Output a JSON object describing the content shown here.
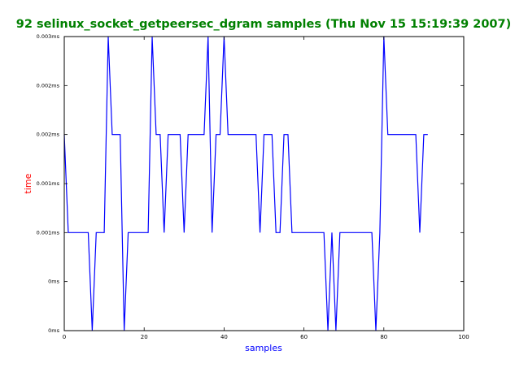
{
  "chart_data": {
    "type": "line",
    "title": "92 selinux_socket_getpeersec_dgram samples (Thu Nov 15 15:19:39 2007)",
    "xlabel": "samples",
    "ylabel": "time",
    "x": [
      0,
      1,
      2,
      3,
      4,
      5,
      6,
      7,
      8,
      9,
      10,
      11,
      12,
      13,
      14,
      15,
      16,
      17,
      18,
      19,
      20,
      21,
      22,
      23,
      24,
      25,
      26,
      27,
      28,
      29,
      30,
      31,
      32,
      33,
      34,
      35,
      36,
      37,
      38,
      39,
      40,
      41,
      42,
      43,
      44,
      45,
      46,
      47,
      48,
      49,
      50,
      51,
      52,
      53,
      54,
      55,
      56,
      57,
      58,
      59,
      60,
      61,
      62,
      63,
      64,
      65,
      66,
      67,
      68,
      69,
      70,
      71,
      72,
      73,
      74,
      75,
      76,
      77,
      78,
      79,
      80,
      81,
      82,
      83,
      84,
      85,
      86,
      87,
      88,
      89,
      90,
      91
    ],
    "series": [
      {
        "color": "#0000ff",
        "values": [
          0.002,
          0.001,
          0.001,
          0.001,
          0.001,
          0.001,
          0.001,
          0,
          0.001,
          0.001,
          0.001,
          0.003,
          0.002,
          0.002,
          0.002,
          0,
          0.001,
          0.001,
          0.001,
          0.001,
          0.001,
          0.001,
          0.003,
          0.002,
          0.002,
          0.001,
          0.002,
          0.002,
          0.002,
          0.002,
          0.001,
          0.002,
          0.002,
          0.002,
          0.002,
          0.002,
          0.003,
          0.001,
          0.002,
          0.002,
          0.003,
          0.002,
          0.002,
          0.002,
          0.002,
          0.002,
          0.002,
          0.002,
          0.002,
          0.001,
          0.002,
          0.002,
          0.002,
          0.001,
          0.001,
          0.002,
          0.002,
          0.001,
          0.001,
          0.001,
          0.001,
          0.001,
          0.001,
          0.001,
          0.001,
          0.001,
          0,
          0.001,
          0,
          0.001,
          0.001,
          0.001,
          0.001,
          0.001,
          0.001,
          0.001,
          0.001,
          0.001,
          0,
          0.001,
          0.003,
          0.002,
          0.002,
          0.002,
          0.002,
          0.002,
          0.002,
          0.002,
          0.002,
          0.001,
          0.002,
          0.002
        ]
      }
    ],
    "xlim": [
      0,
      100
    ],
    "xticks": [
      0,
      20,
      40,
      60,
      80,
      100
    ],
    "ylim": [
      0,
      0.003
    ],
    "yticks": [
      {
        "value": 0,
        "label": "0ms"
      },
      {
        "value": 0.0005,
        "label": "0ms"
      },
      {
        "value": 0.001,
        "label": "0.001ms"
      },
      {
        "value": 0.0015,
        "label": "0.001ms"
      },
      {
        "value": 0.002,
        "label": "0.002ms"
      },
      {
        "value": 0.0025,
        "label": "0.002ms"
      },
      {
        "value": 0.003,
        "label": "0.003ms"
      }
    ],
    "title_color": "#008000",
    "xlabel_color": "#0000ff",
    "ylabel_color": "#ff0000"
  }
}
